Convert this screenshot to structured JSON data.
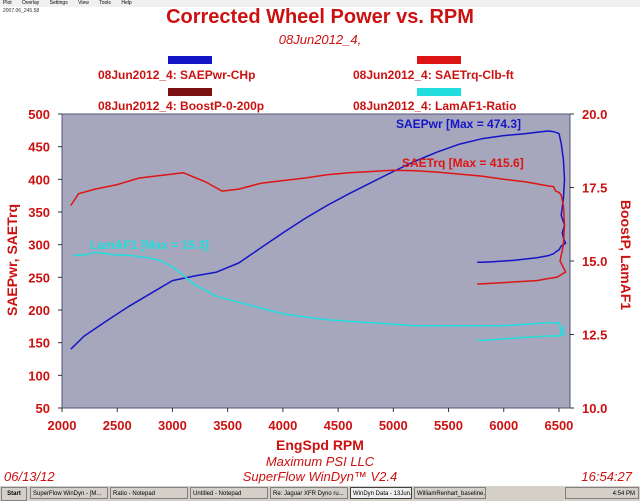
{
  "menubar": {
    "items": [
      "Plot",
      "Overlay",
      "Settings",
      "View",
      "Tools",
      "Help"
    ],
    "filepath": "2007.06_245.58"
  },
  "footer": {
    "date": "06/13/12",
    "company": "Maximum PSI LLC",
    "software": "SuperFlow WinDyn™ V2.4",
    "time": "16:54:27"
  },
  "taskbar": {
    "start_label": "Start",
    "tasks": [
      {
        "label": "SuperFlow WinDyn - [M..."
      },
      {
        "label": "Ratio - Notepad"
      },
      {
        "label": "Untitled - Notepad"
      },
      {
        "label": "Re: Jaguar XFR Dyno ru..."
      },
      {
        "label": "WinDyn Data - 13Jun..."
      },
      {
        "label": "WilliamRenhart_baseline..."
      }
    ],
    "clock": "4:54 PM"
  },
  "colors": {
    "saepwr": "#1515c8",
    "saetrq": "#dd1515",
    "boost": "#7a1010",
    "lamaf1": "#22dddd",
    "plot_bg": "#a6a6bc",
    "text_red": "#cc1111"
  },
  "chart_data": {
    "type": "line",
    "title": "Corrected Wheel Power vs. RPM",
    "subtitle": "08Jun2012_4,",
    "xlabel": "EngSpd RPM",
    "ylabel_left": "SAEPwr, SAETrq",
    "ylabel_right": "BoostP, LamAF1",
    "xlim": [
      2000,
      6600
    ],
    "ylim_left": [
      50,
      500
    ],
    "ylim_right": [
      10.0,
      20.0
    ],
    "x_ticks": [
      "2000",
      "2500",
      "3000",
      "3500",
      "4000",
      "4500",
      "5000",
      "5500",
      "6000",
      "6500"
    ],
    "y_left_ticks": [
      "50",
      "100",
      "150",
      "200",
      "250",
      "300",
      "350",
      "400",
      "450",
      "500"
    ],
    "y_right_ticks": [
      "10.0",
      "12.5",
      "15.0",
      "17.5",
      "20.0"
    ],
    "grid": false,
    "legend": [
      {
        "label": "08Jun2012_4: SAEPwr-CHp",
        "color": "#1515c8",
        "pos": "top-left"
      },
      {
        "label": "08Jun2012_4: SAETrq-Clb-ft",
        "color": "#dd1515",
        "pos": "top-right"
      },
      {
        "label": "08Jun2012_4: BoostP-0-200p",
        "color": "#7a1010",
        "pos": "bottom-left"
      },
      {
        "label": "08Jun2012_4: LamAF1-Ratio",
        "color": "#22dddd",
        "pos": "bottom-right"
      }
    ],
    "annotations": [
      {
        "text": "SAEPwr [Max = 474.3]",
        "series": "SAEPwr",
        "color": "#1515c8"
      },
      {
        "text": "SAETrq [Max = 415.6]",
        "series": "SAETrq",
        "color": "#dd1515"
      },
      {
        "text": "LamAF1 [Max = 15.3]",
        "series": "LamAF1",
        "color": "#22dddd"
      }
    ],
    "series": [
      {
        "name": "SAEPwr",
        "axis": "left",
        "x": [
          2080,
          2200,
          2400,
          2600,
          2800,
          3000,
          3200,
          3400,
          3600,
          3800,
          4000,
          4200,
          4400,
          4600,
          4800,
          5000,
          5200,
          5400,
          5600,
          5800,
          6000,
          6200,
          6300,
          6400,
          6450,
          6500,
          6520,
          6540,
          6550,
          6540,
          6520,
          6550,
          6530,
          6540,
          6560,
          6520,
          6500,
          6480,
          6450,
          6400,
          6300,
          6200,
          6100,
          6000,
          5900,
          5800,
          5760
        ],
        "y": [
          140,
          160,
          183,
          205,
          225,
          245,
          252,
          258,
          272,
          295,
          318,
          340,
          360,
          378,
          395,
          412,
          428,
          442,
          454,
          462,
          467,
          470,
          472,
          474,
          473,
          470,
          455,
          430,
          400,
          370,
          345,
          330,
          318,
          310,
          302,
          298,
          292,
          290,
          286,
          283,
          280,
          278,
          276,
          275,
          274,
          273,
          273
        ]
      },
      {
        "name": "SAETrq",
        "axis": "left",
        "x": [
          2080,
          2150,
          2300,
          2500,
          2700,
          2900,
          3100,
          3300,
          3450,
          3600,
          3800,
          4000,
          4200,
          4400,
          4600,
          4800,
          5000,
          5200,
          5400,
          5600,
          5800,
          6000,
          6200,
          6300,
          6400,
          6450,
          6470,
          6500,
          6520,
          6540,
          6550,
          6540,
          6510,
          6540,
          6560,
          6500,
          6480,
          6400,
          6300,
          6200,
          6100,
          6000,
          5900,
          5800,
          5760
        ],
        "y": [
          360,
          378,
          385,
          392,
          402,
          406,
          410,
          396,
          382,
          385,
          394,
          398,
          402,
          407,
          410,
          412,
          414,
          413,
          411,
          408,
          405,
          400,
          396,
          393,
          390,
          389,
          382,
          380,
          376,
          360,
          330,
          300,
          275,
          265,
          258,
          252,
          250,
          248,
          245,
          244,
          243,
          242,
          241,
          240,
          240
        ]
      },
      {
        "name": "LamAF1",
        "axis": "right",
        "x": [
          2100,
          2200,
          2300,
          2400,
          2500,
          2600,
          2700,
          2800,
          2900,
          3000,
          3100,
          3200,
          3300,
          3400,
          3600,
          3800,
          4000,
          4200,
          4400,
          4600,
          4800,
          5000,
          5200,
          5400,
          5600,
          5800,
          6000,
          6200,
          6400,
          6500,
          6520,
          6540,
          6510,
          6530,
          6550,
          6500,
          6400,
          6200,
          6000,
          5800,
          5760
        ],
        "y": [
          15.2,
          15.2,
          15.3,
          15.25,
          15.2,
          15.2,
          15.15,
          15.1,
          15.0,
          14.8,
          14.5,
          14.2,
          14.0,
          13.8,
          13.6,
          13.4,
          13.2,
          13.1,
          13.0,
          12.95,
          12.9,
          12.85,
          12.8,
          12.8,
          12.8,
          12.8,
          12.8,
          12.85,
          12.9,
          12.9,
          12.6,
          12.8,
          12.5,
          12.7,
          12.5,
          12.45,
          12.45,
          12.4,
          12.35,
          12.3,
          12.3
        ]
      }
    ]
  }
}
